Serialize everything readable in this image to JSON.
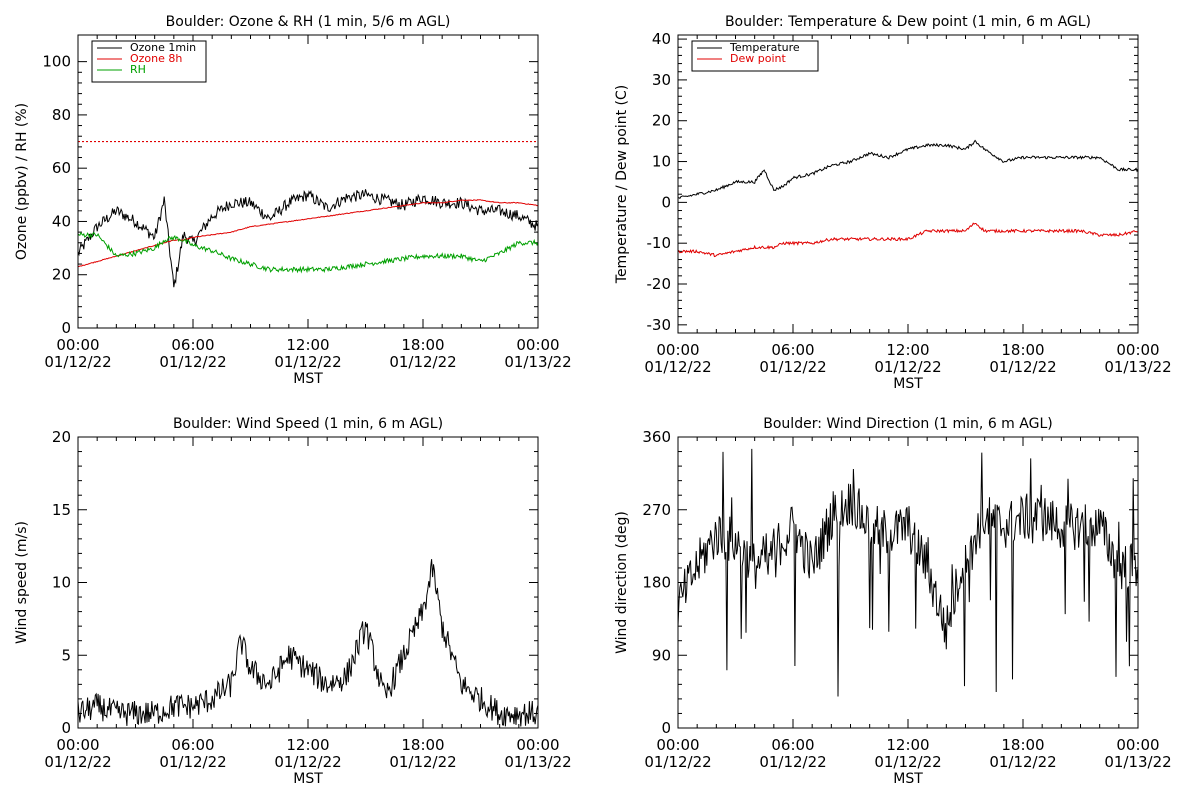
{
  "charts": [
    {
      "id": "ozone_rh",
      "title": "Boulder: Ozone & RH (1 min, 5/6 m AGL)",
      "ylabel": "Ozone (ppbv) / RH (%)",
      "xlabel": "MST",
      "ylim": [
        0,
        110
      ],
      "yticks": [
        0,
        20,
        40,
        60,
        80,
        100
      ],
      "xticks": [
        {
          "time": "00:00",
          "date": "01/12/22"
        },
        {
          "time": "06:00",
          "date": "01/12/22"
        },
        {
          "time": "12:00",
          "date": "01/12/22"
        },
        {
          "time": "18:00",
          "date": "01/12/22"
        },
        {
          "time": "00:00",
          "date": "01/13/22"
        }
      ],
      "legend": [
        "Ozone 1min",
        "Ozone 8h",
        "RH"
      ],
      "threshold_value": 70,
      "colors": {
        "series0": "#000000",
        "series1": "#e00000",
        "series2": "#00a000",
        "threshold": "#e00000"
      }
    },
    {
      "id": "temp_dew",
      "title": "Boulder: Temperature & Dew point (1 min, 6 m AGL)",
      "ylabel": "Temperature / Dew point (C)",
      "xlabel": "MST",
      "ylim": [
        -32,
        41
      ],
      "yticks": [
        -30,
        -20,
        -10,
        0,
        10,
        20,
        30,
        40
      ],
      "xticks": [
        {
          "time": "00:00",
          "date": "01/12/22"
        },
        {
          "time": "06:00",
          "date": "01/12/22"
        },
        {
          "time": "12:00",
          "date": "01/12/22"
        },
        {
          "time": "18:00",
          "date": "01/12/22"
        },
        {
          "time": "00:00",
          "date": "01/13/22"
        }
      ],
      "legend": [
        "Temperature",
        "Dew point"
      ],
      "colors": {
        "series0": "#000000",
        "series1": "#e00000"
      }
    },
    {
      "id": "wind_speed",
      "title": "Boulder: Wind Speed (1 min, 6 m AGL)",
      "ylabel": "Wind speed (m/s)",
      "xlabel": "MST",
      "ylim": [
        0,
        20
      ],
      "yticks": [
        0,
        5,
        10,
        15,
        20
      ],
      "xticks": [
        {
          "time": "00:00",
          "date": "01/12/22"
        },
        {
          "time": "06:00",
          "date": "01/12/22"
        },
        {
          "time": "12:00",
          "date": "01/12/22"
        },
        {
          "time": "18:00",
          "date": "01/12/22"
        },
        {
          "time": "00:00",
          "date": "01/13/22"
        }
      ],
      "legend": [],
      "colors": {
        "series0": "#000000"
      }
    },
    {
      "id": "wind_dir",
      "title": "Boulder: Wind Direction (1 min, 6 m AGL)",
      "ylabel": "Wind direction (deg)",
      "xlabel": "MST",
      "ylim": [
        0,
        360
      ],
      "yticks": [
        0,
        90,
        180,
        270,
        360
      ],
      "xticks": [
        {
          "time": "00:00",
          "date": "01/12/22"
        },
        {
          "time": "06:00",
          "date": "01/12/22"
        },
        {
          "time": "12:00",
          "date": "01/12/22"
        },
        {
          "time": "18:00",
          "date": "01/12/22"
        },
        {
          "time": "00:00",
          "date": "01/13/22"
        }
      ],
      "legend": [],
      "colors": {
        "series0": "#000000"
      }
    }
  ],
  "chart_data": [
    {
      "type": "line",
      "title": "Boulder: Ozone & RH (1 min, 5/6 m AGL)",
      "xlabel": "MST",
      "ylabel": "Ozone (ppbv) / RH (%)",
      "ylim": [
        0,
        110
      ],
      "xlim": [
        "01/12/22 00:00",
        "01/13/22 00:00"
      ],
      "grid": false,
      "legend_position": "top-left",
      "x": [
        "00:00",
        "01:00",
        "02:00",
        "03:00",
        "04:00",
        "04:30",
        "05:00",
        "05:30",
        "06:00",
        "07:00",
        "08:00",
        "09:00",
        "10:00",
        "11:00",
        "12:00",
        "13:00",
        "14:00",
        "15:00",
        "16:00",
        "17:00",
        "18:00",
        "19:00",
        "20:00",
        "21:00",
        "22:00",
        "23:00",
        "24:00"
      ],
      "series": [
        {
          "name": "Ozone 1min",
          "values": [
            28,
            38,
            44,
            40,
            34,
            48,
            15,
            35,
            32,
            42,
            47,
            47,
            41,
            47,
            50,
            45,
            49,
            50,
            48,
            46,
            49,
            47,
            47,
            44,
            44,
            42,
            38
          ]
        },
        {
          "name": "Ozone 8h",
          "values": [
            23,
            25,
            27,
            29,
            31,
            32,
            33,
            33,
            34,
            35,
            36,
            38,
            39,
            40,
            41,
            42,
            43,
            44,
            45,
            46,
            47,
            47,
            48,
            48,
            47,
            47,
            46
          ]
        },
        {
          "name": "RH",
          "values": [
            35,
            35,
            27,
            28,
            30,
            33,
            34,
            33,
            31,
            29,
            26,
            24,
            22,
            22,
            22,
            22,
            23,
            24,
            25,
            26,
            27,
            27,
            27,
            25,
            28,
            32,
            32
          ]
        }
      ],
      "threshold": 70
    },
    {
      "type": "line",
      "title": "Boulder: Temperature & Dew point (1 min, 6 m AGL)",
      "xlabel": "MST",
      "ylabel": "Temperature / Dew point (C)",
      "ylim": [
        -32,
        41
      ],
      "xlim": [
        "01/12/22 00:00",
        "01/13/22 00:00"
      ],
      "grid": false,
      "legend_position": "top-left",
      "x": [
        "00:00",
        "01:00",
        "02:00",
        "03:00",
        "04:00",
        "04:30",
        "05:00",
        "05:30",
        "06:00",
        "07:00",
        "08:00",
        "09:00",
        "10:00",
        "11:00",
        "12:00",
        "13:00",
        "14:00",
        "15:00",
        "15:30",
        "16:00",
        "17:00",
        "18:00",
        "19:00",
        "20:00",
        "21:00",
        "22:00",
        "23:00",
        "24:00"
      ],
      "series": [
        {
          "name": "Temperature",
          "values": [
            1,
            2,
            3,
            5,
            5,
            8,
            3,
            4,
            6,
            7,
            9,
            10,
            12,
            11,
            13,
            14,
            14,
            13,
            15,
            13,
            10,
            11,
            11,
            11,
            11,
            11,
            8,
            8
          ]
        },
        {
          "name": "Dew point",
          "values": [
            -12,
            -12,
            -13,
            -12,
            -11,
            -11,
            -11,
            -10,
            -10,
            -10,
            -9,
            -9,
            -9,
            -9,
            -9,
            -7,
            -7,
            -7,
            -5,
            -7,
            -7,
            -7,
            -7,
            -7,
            -7,
            -8,
            -8,
            -7
          ]
        }
      ]
    },
    {
      "type": "line",
      "title": "Boulder: Wind Speed (1 min, 6 m AGL)",
      "xlabel": "MST",
      "ylabel": "Wind speed (m/s)",
      "ylim": [
        0,
        20
      ],
      "xlim": [
        "01/12/22 00:00",
        "01/13/22 00:00"
      ],
      "grid": false,
      "x": [
        "00:00",
        "01:00",
        "02:00",
        "03:00",
        "04:00",
        "05:00",
        "06:00",
        "07:00",
        "08:00",
        "08:30",
        "09:00",
        "10:00",
        "11:00",
        "12:00",
        "13:00",
        "14:00",
        "15:00",
        "16:00",
        "17:00",
        "18:00",
        "18:30",
        "19:00",
        "20:00",
        "21:00",
        "22:00",
        "23:00",
        "24:00"
      ],
      "series": [
        {
          "name": "",
          "values": [
            1,
            1.5,
            1,
            1,
            1,
            1.5,
            1.5,
            2,
            3,
            6,
            4,
            3,
            5,
            4,
            3,
            3.5,
            7,
            2,
            5,
            8,
            11,
            7,
            3,
            2,
            1,
            1,
            1
          ]
        }
      ]
    },
    {
      "type": "line",
      "title": "Boulder: Wind Direction (1 min, 6 m AGL)",
      "xlabel": "MST",
      "ylabel": "Wind direction (deg)",
      "ylim": [
        0,
        360
      ],
      "xlim": [
        "01/12/22 00:00",
        "01/13/22 00:00"
      ],
      "grid": false,
      "x": [
        "00:00",
        "01:00",
        "02:00",
        "03:00",
        "04:00",
        "05:00",
        "06:00",
        "07:00",
        "08:00",
        "09:00",
        "10:00",
        "11:00",
        "12:00",
        "13:00",
        "14:00",
        "15:00",
        "16:00",
        "17:00",
        "18:00",
        "19:00",
        "20:00",
        "21:00",
        "22:00",
        "23:00",
        "24:00"
      ],
      "series": [
        {
          "name": "",
          "values": [
            150,
            200,
            240,
            230,
            200,
            220,
            250,
            200,
            260,
            280,
            250,
            240,
            250,
            200,
            120,
            220,
            260,
            250,
            260,
            260,
            250,
            250,
            250,
            200,
            200
          ]
        }
      ]
    }
  ]
}
